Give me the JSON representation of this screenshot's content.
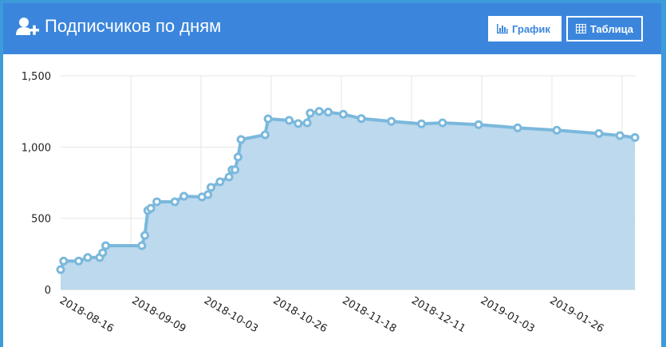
{
  "header": {
    "title": "Подписчиков по дням",
    "icon": "user-plus-icon",
    "buttons": [
      {
        "label": "График",
        "icon": "bar-chart-icon",
        "active": true
      },
      {
        "label": "Таблица",
        "icon": "table-icon",
        "active": false
      }
    ]
  },
  "colors": {
    "header": "#3b86dc",
    "line": "#7ab8dc",
    "fill": "#bcd9ed"
  },
  "chart_data": {
    "type": "area",
    "title": "",
    "xlabel": "",
    "ylabel": "",
    "ylim": [
      0,
      1500
    ],
    "yticks": [
      0,
      500,
      1000,
      1500
    ],
    "ytick_labels": [
      "0",
      "500",
      "1,000",
      "1,500"
    ],
    "xticks": [
      "2018-08-16",
      "2018-09-09",
      "2018-10-03",
      "2018-10-26",
      "2018-11-18",
      "2018-12-11",
      "2019-01-03",
      "2019-01-26"
    ],
    "xlim": [
      "2018-08-16",
      "2019-02-23"
    ],
    "grid": true,
    "points": [
      [
        "2018-08-16",
        140
      ],
      [
        "2018-08-17",
        200
      ],
      [
        "2018-08-22",
        200
      ],
      [
        "2018-08-25",
        225
      ],
      [
        "2018-08-29",
        225
      ],
      [
        "2018-08-30",
        258
      ],
      [
        "2018-08-31",
        308
      ],
      [
        "2018-09-12",
        308
      ],
      [
        "2018-09-13",
        380
      ],
      [
        "2018-09-14",
        555
      ],
      [
        "2018-09-15",
        570
      ],
      [
        "2018-09-17",
        616
      ],
      [
        "2018-09-23",
        616
      ],
      [
        "2018-09-26",
        655
      ],
      [
        "2018-10-02",
        650
      ],
      [
        "2018-10-04",
        666
      ],
      [
        "2018-10-05",
        717
      ],
      [
        "2018-10-08",
        756
      ],
      [
        "2018-10-11",
        790
      ],
      [
        "2018-10-12",
        840
      ],
      [
        "2018-10-13",
        840
      ],
      [
        "2018-10-14",
        930
      ],
      [
        "2018-10-15",
        1053
      ],
      [
        "2018-10-23",
        1086
      ],
      [
        "2018-10-24",
        1198
      ],
      [
        "2018-10-31",
        1187
      ],
      [
        "2018-11-03",
        1165
      ],
      [
        "2018-11-06",
        1170
      ],
      [
        "2018-11-07",
        1238
      ],
      [
        "2018-11-10",
        1250
      ],
      [
        "2018-11-13",
        1245
      ],
      [
        "2018-11-18",
        1230
      ],
      [
        "2018-11-24",
        1200
      ],
      [
        "2018-12-04",
        1180
      ],
      [
        "2018-12-14",
        1163
      ],
      [
        "2018-12-21",
        1170
      ],
      [
        "2019-01-02",
        1157
      ],
      [
        "2019-01-15",
        1135
      ],
      [
        "2019-01-28",
        1118
      ],
      [
        "2019-02-11",
        1095
      ],
      [
        "2019-02-18",
        1080
      ],
      [
        "2019-02-23",
        1067
      ]
    ]
  }
}
